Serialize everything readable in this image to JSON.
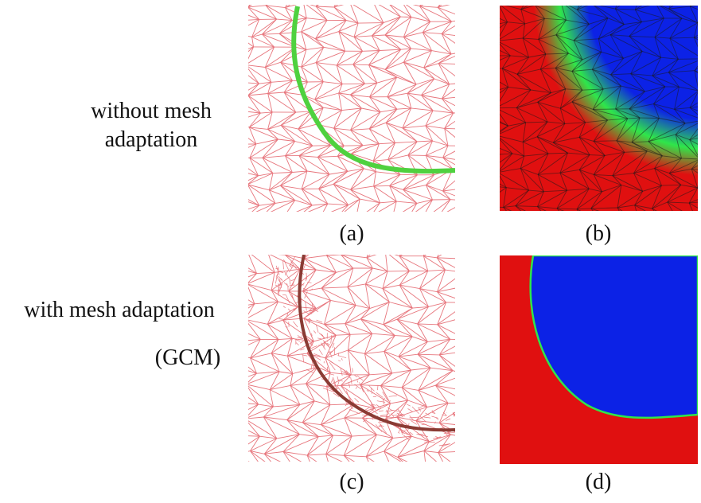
{
  "rows": [
    {
      "label_lines": [
        "without mesh",
        "adaptation"
      ]
    },
    {
      "label_lines": [
        "with mesh adaptation"
      ],
      "sublabel": "(GCM)"
    }
  ],
  "panels": [
    {
      "id": "a",
      "caption": "(a)",
      "kind": "mesh",
      "mesh_color": "#e7757c",
      "front_color": "#4fd13f"
    },
    {
      "id": "b",
      "caption": "(b)",
      "kind": "field",
      "colors": {
        "outside": "#e01010",
        "inside": "#0c22e6",
        "interface": "#2fe64a"
      }
    },
    {
      "id": "c",
      "caption": "(c)",
      "kind": "mesh",
      "mesh_color": "#e7757c",
      "front_color": "#8a3b34"
    },
    {
      "id": "d",
      "caption": "(d)",
      "kind": "field",
      "colors": {
        "outside": "#e01010",
        "inside": "#0c22e6",
        "interface": "#2fe64a"
      }
    }
  ]
}
